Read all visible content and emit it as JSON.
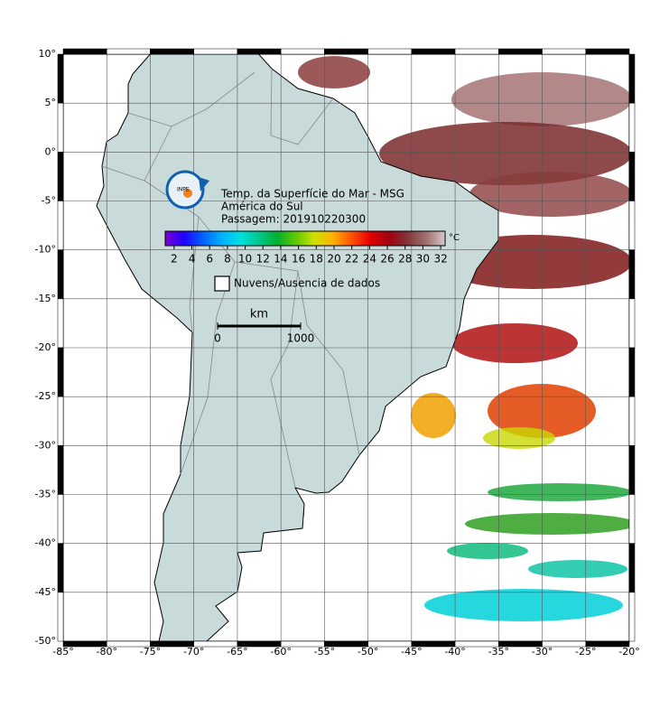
{
  "map": {
    "title_lines": [
      "Temp. da Superfície do Mar - MSG",
      "América do Sul",
      "Passagem: 201910220300"
    ],
    "logo": "INPE",
    "lonlim": [
      -85,
      -20
    ],
    "latlim": [
      -50,
      10
    ],
    "grid": true,
    "lon_ticks": [
      {
        "value": -85,
        "label": "-85°"
      },
      {
        "value": -80,
        "label": "-80°"
      },
      {
        "value": -75,
        "label": "-75°"
      },
      {
        "value": -70,
        "label": "-70°"
      },
      {
        "value": -65,
        "label": "-65°"
      },
      {
        "value": -60,
        "label": "-60°"
      },
      {
        "value": -55,
        "label": "-55°"
      },
      {
        "value": -50,
        "label": "-50°"
      },
      {
        "value": -45,
        "label": "-45°"
      },
      {
        "value": -40,
        "label": "-40°"
      },
      {
        "value": -35,
        "label": "-35°"
      },
      {
        "value": -30,
        "label": "-30°"
      },
      {
        "value": -25,
        "label": "-25°"
      },
      {
        "value": -20,
        "label": "-20°"
      }
    ],
    "lat_ticks": [
      {
        "value": 10,
        "label": "10°"
      },
      {
        "value": 5,
        "label": "5°"
      },
      {
        "value": 0,
        "label": "0°"
      },
      {
        "value": -5,
        "label": "-5°"
      },
      {
        "value": -10,
        "label": "-10°"
      },
      {
        "value": -15,
        "label": "-15°"
      },
      {
        "value": -20,
        "label": "-20°"
      },
      {
        "value": -25,
        "label": "-25°"
      },
      {
        "value": -30,
        "label": "-30°"
      },
      {
        "value": -35,
        "label": "-35°"
      },
      {
        "value": -40,
        "label": "-40°"
      },
      {
        "value": -45,
        "label": "-45°"
      },
      {
        "value": -50,
        "label": "-50°"
      }
    ],
    "colorbar": {
      "unit": "°C",
      "range": [
        1,
        32.5
      ],
      "ticks": [
        2,
        4,
        6,
        8,
        10,
        12,
        14,
        16,
        18,
        20,
        22,
        24,
        26,
        28,
        30,
        32
      ],
      "colors": [
        "#7a00d0",
        "#2000ff",
        "#0060ff",
        "#00b0ff",
        "#00e0e0",
        "#00c890",
        "#00b030",
        "#60c800",
        "#d0e000",
        "#ffb000",
        "#ff5000",
        "#e00000",
        "#a00010",
        "#803838",
        "#a07070",
        "#d8c8c8"
      ]
    },
    "legend": {
      "clouds": "Nuvens/Ausencia de dados"
    },
    "scale_bar": {
      "unit": "km",
      "ticks": [
        0,
        1000
      ]
    }
  }
}
